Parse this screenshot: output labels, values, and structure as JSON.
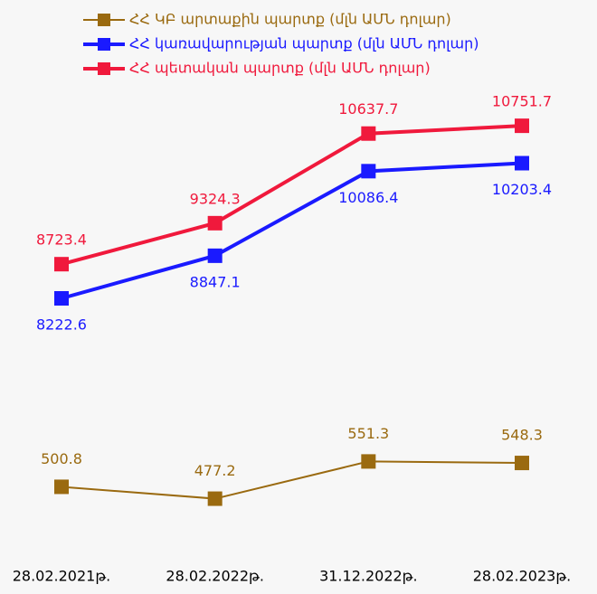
{
  "chart_data": {
    "type": "line",
    "categories": [
      "28.02.2021թ.",
      "28.02.2022թ.",
      "31.12.2022թ.",
      "28.02.2023թ."
    ],
    "series": [
      {
        "name": "ՀՀ ԿԲ արտաքին պարտք (մլն ԱՄՆ դոլար)",
        "color": "#9a6a10",
        "axis": "y2",
        "values": [
          500.8,
          477.2,
          551.3,
          548.3
        ]
      },
      {
        "name": "ՀՀ կառավարության պարտք (մլն ԱՄՆ դոլար)",
        "color": "#1a1aff",
        "values": [
          8222.6,
          8847.1,
          10086.4,
          10203.4
        ]
      },
      {
        "name": "ՀՀ պետական պարտք (մլն ԱՄՆ դոլար)",
        "color": "#f0193c",
        "values": [
          8723.4,
          9324.3,
          10637.7,
          10751.7
        ]
      }
    ],
    "ylim": [
      6500,
      11800
    ],
    "y2lim": [
      390,
      660
    ],
    "legend": "top"
  }
}
